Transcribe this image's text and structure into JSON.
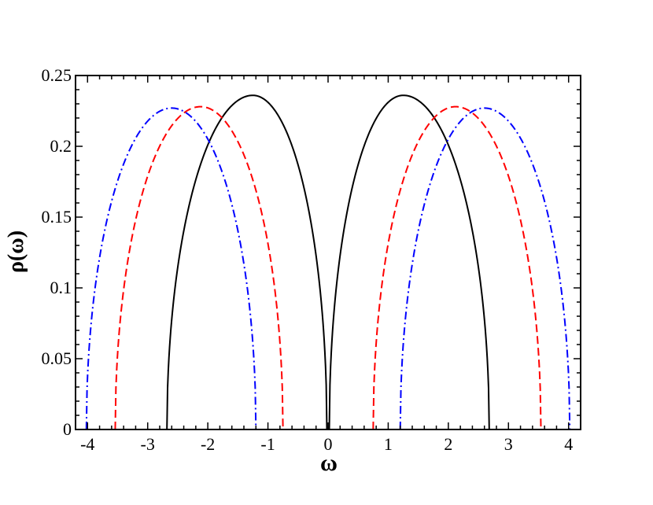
{
  "chart_data": {
    "type": "line",
    "xlabel": "ω",
    "ylabel": "ρ(ω)",
    "xlim": [
      -4.2,
      4.2
    ],
    "ylim": [
      0,
      0.25
    ],
    "x_ticks": [
      -4,
      -3,
      -2,
      -1,
      0,
      1,
      2,
      3,
      4
    ],
    "x_tick_labels": [
      "-4",
      "-3",
      "-2",
      "-1",
      "0",
      "1",
      "2",
      "3",
      "4"
    ],
    "y_ticks": [
      0,
      0.05,
      0.1,
      0.15,
      0.2,
      0.25
    ],
    "y_tick_labels": [
      "0",
      "0.05",
      "0.1",
      "0.15",
      "0.2",
      "0.25"
    ],
    "grid": false,
    "legend": "none",
    "series": [
      {
        "color": "#000000",
        "style": "solid",
        "bands": [
          {
            "from": -2.68,
            "to": -0.02,
            "center": -1.25,
            "peak": 0.236
          },
          {
            "from": 0.02,
            "to": 2.68,
            "center": 1.25,
            "peak": 0.236
          }
        ]
      },
      {
        "color": "#ff0000",
        "style": "dashed",
        "bands": [
          {
            "from": -3.54,
            "to": -0.75,
            "center": -2.12,
            "peak": 0.228
          },
          {
            "from": 0.75,
            "to": 3.54,
            "center": 2.12,
            "peak": 0.228
          }
        ]
      },
      {
        "color": "#0000ff",
        "style": "dash-dot",
        "bands": [
          {
            "from": -4.02,
            "to": -1.2,
            "center": -2.6,
            "peak": 0.227
          },
          {
            "from": 1.2,
            "to": 4.02,
            "center": 2.6,
            "peak": 0.227
          }
        ]
      }
    ]
  }
}
